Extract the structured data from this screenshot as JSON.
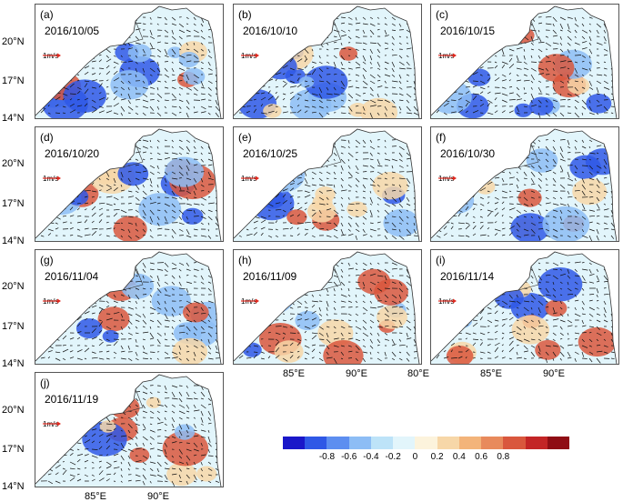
{
  "panels": [
    {
      "label": "(a)",
      "date": "2016/10/05"
    },
    {
      "label": "(b)",
      "date": "2016/10/10"
    },
    {
      "label": "(c)",
      "date": "2016/10/15"
    },
    {
      "label": "(d)",
      "date": "2016/10/20"
    },
    {
      "label": "(e)",
      "date": "2016/10/25"
    },
    {
      "label": "(f)",
      "date": "2016/10/30"
    },
    {
      "label": "(g)",
      "date": "2016/11/04"
    },
    {
      "label": "(h)",
      "date": "2016/11/09"
    },
    {
      "label": "(i)",
      "date": "2016/11/14"
    },
    {
      "label": "(j)",
      "date": "2016/11/19"
    }
  ],
  "scale_label": "1m/s",
  "lat_labels": [
    "20°N",
    "17°N",
    "14°N"
  ],
  "lon_labels": [
    "85°E",
    "90°E",
    "80°E"
  ],
  "colorbar": {
    "ticks": [
      "-0.8",
      "-0.6",
      "-0.4",
      "-0.2",
      "0",
      "0.2",
      "0.4",
      "0.6",
      "0.8"
    ],
    "colors": [
      "#1a17c9",
      "#2f58e6",
      "#5d8ef0",
      "#8dbdf5",
      "#bde3f8",
      "#e2f5fb",
      "#fcf3dc",
      "#f7d7a8",
      "#f3b47a",
      "#e88a5c",
      "#d9573d",
      "#c32526",
      "#8f0d14"
    ]
  },
  "arrow_color": "#e0281e"
}
